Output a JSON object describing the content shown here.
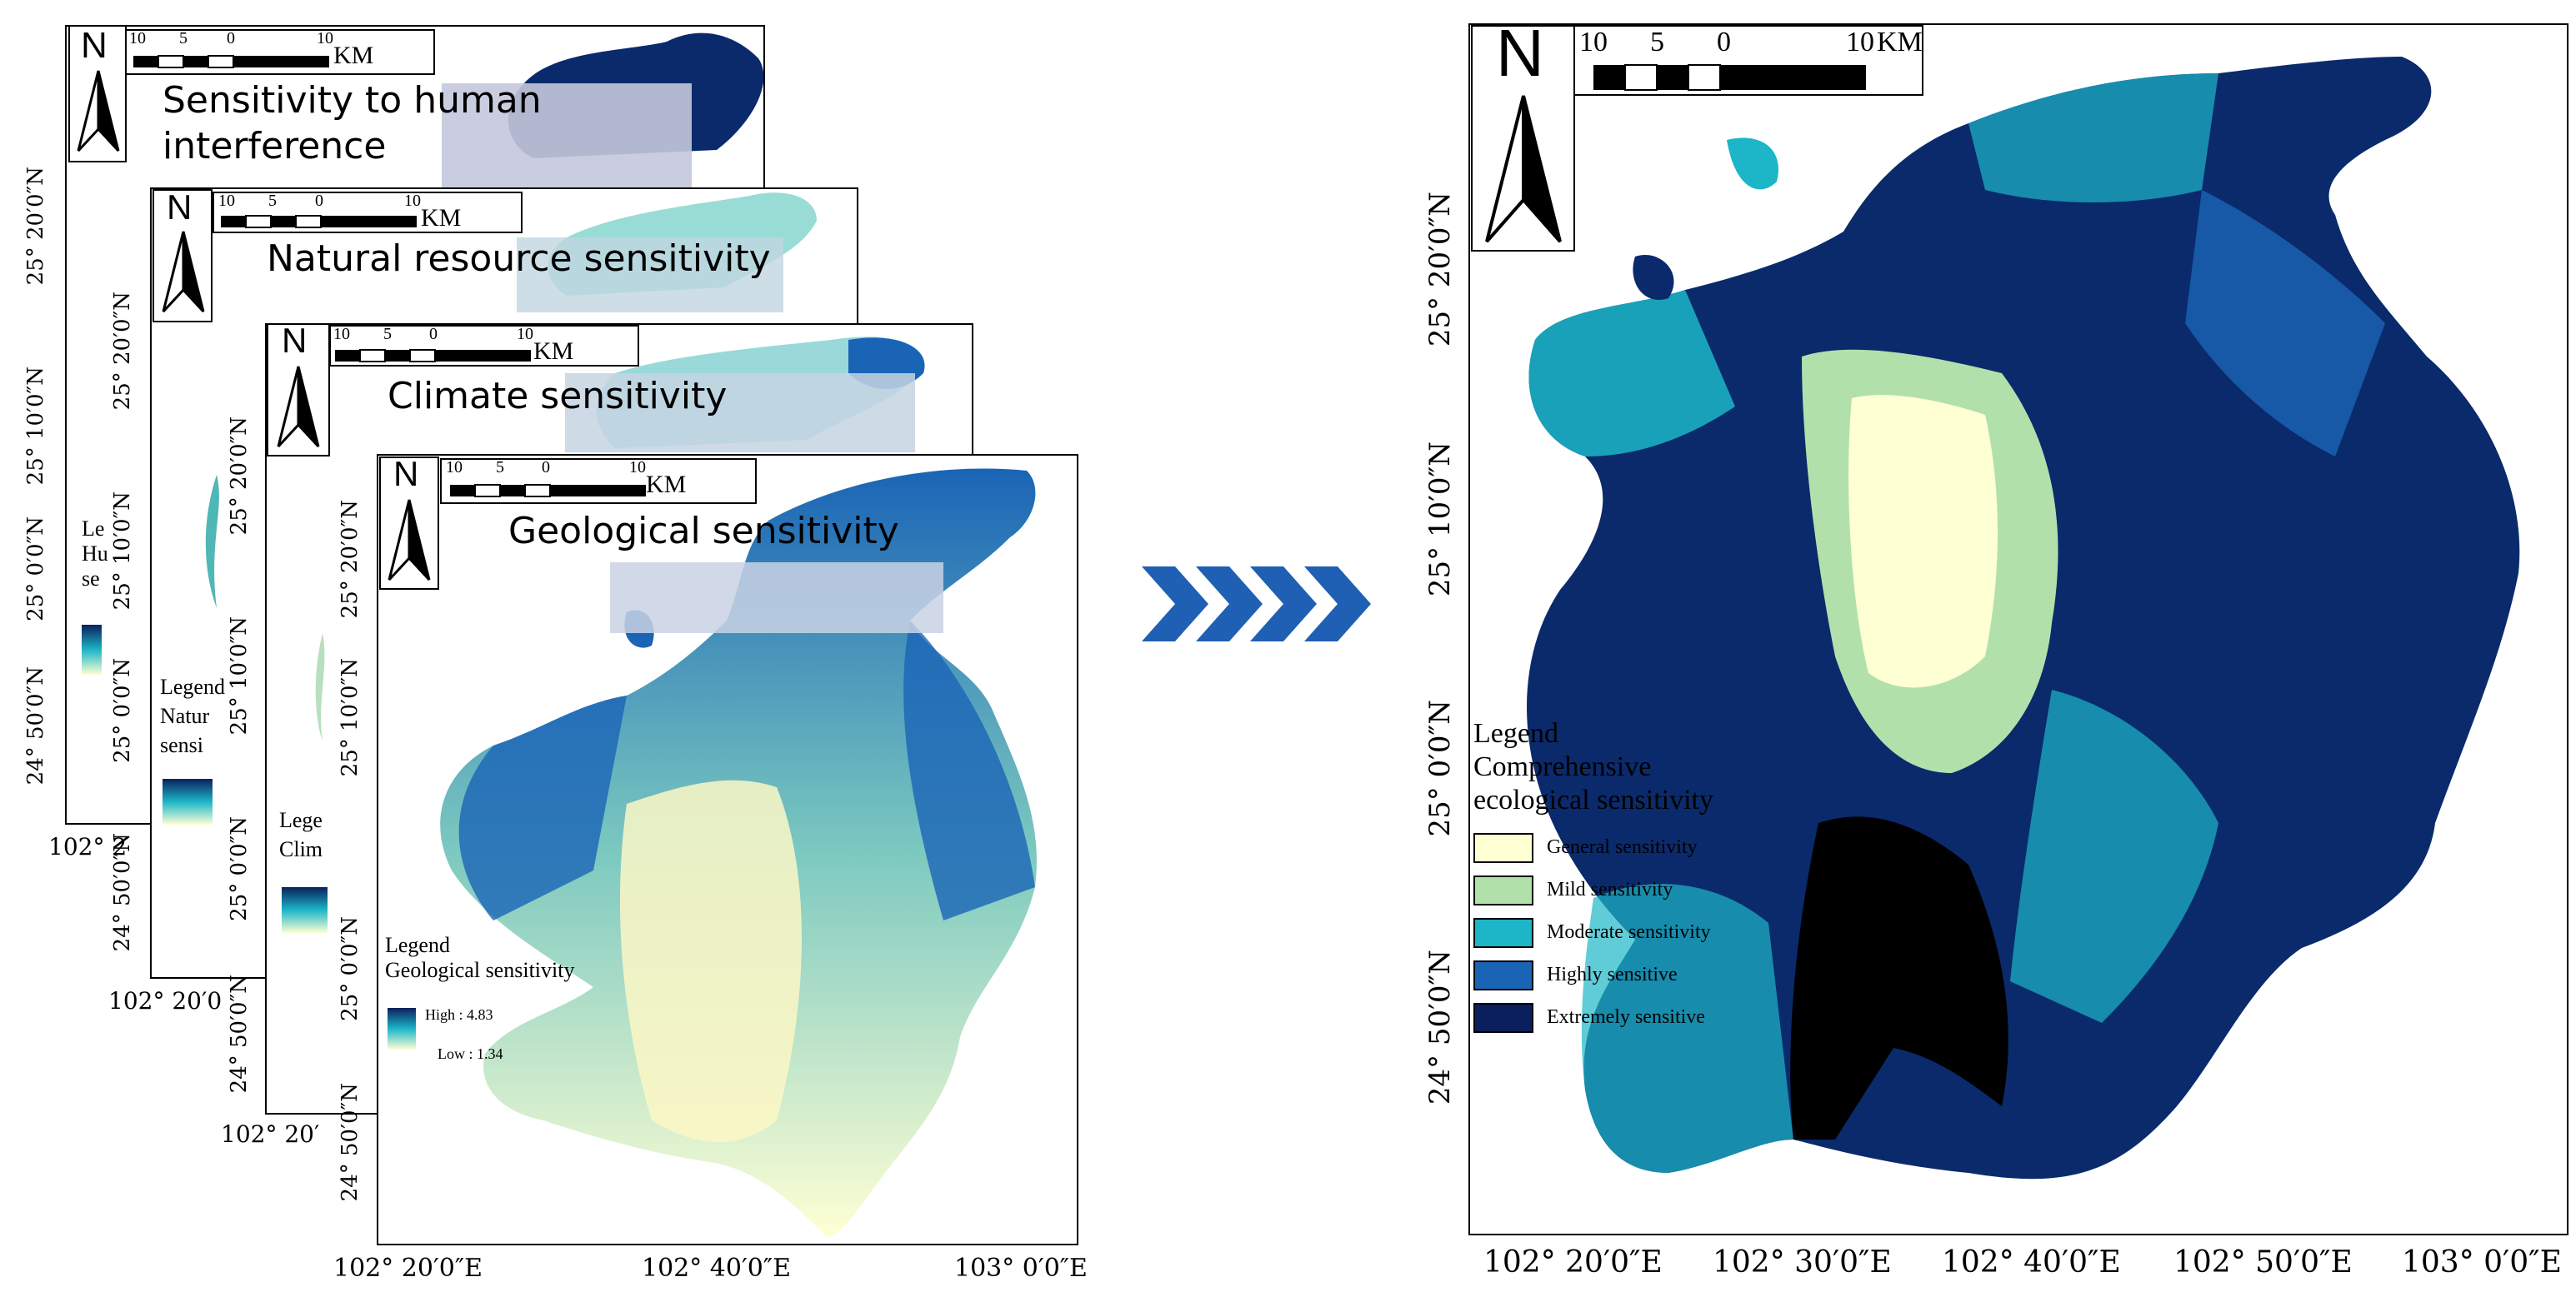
{
  "scale": {
    "ticks": [
      "10",
      "5",
      "0",
      "10"
    ],
    "unit": "KM"
  },
  "north_arrow": "N",
  "panels": [
    {
      "title": "Sensitivity to human interference",
      "title_lines": [
        "Sensitivity to human",
        "interference"
      ],
      "lat_labels": [
        "25° 20′0″N",
        "25° 10′0″N",
        "25° 0′0″N",
        "24° 50′0″N"
      ],
      "lon_labels": [
        "102° 2"
      ],
      "legend_fragments": [
        "Le",
        "Hu",
        "se"
      ]
    },
    {
      "title": "Natural resource sensitivity",
      "lat_labels": [
        "25° 20′0″N",
        "25° 10′0″N",
        "25° 0′0″N",
        "24° 50′0″N"
      ],
      "lon_labels": [
        "102° 20′0"
      ],
      "legend_fragments": [
        "Legend",
        "Natur",
        "sensi"
      ]
    },
    {
      "title": "Climate sensitivity",
      "lat_labels": [
        "25° 20′0″N",
        "25° 10′0″N",
        "25° 0′0″N",
        "24° 50′0″N"
      ],
      "lon_labels": [
        "102° 20′"
      ],
      "legend_fragments": [
        "Lege",
        "Clim"
      ]
    },
    {
      "title": "Geological sensitivity",
      "lat_labels": [
        "25° 20′0″N",
        "25° 10′0″N",
        "25° 0′0″N",
        "24° 50′0″N"
      ],
      "lon_labels": [
        "102° 20′0″E",
        "102° 40′0″E",
        "103° 0′0″E"
      ],
      "legend": {
        "title": "Legend",
        "subtitle": "Geological sensitivity",
        "high": "High : 4.83",
        "low": "Low : 1.34"
      }
    }
  ],
  "main_map": {
    "lat_labels": [
      "25° 20′0″N",
      "25° 10′0″N",
      "25° 0′0″N",
      "24° 50′0″N"
    ],
    "lon_labels": [
      "102° 20′0″E",
      "102° 30′0″E",
      "102° 40′0″E",
      "102° 50′0″E",
      "103° 0′0″E"
    ],
    "legend": {
      "title": "Legend",
      "subtitle_lines": [
        "Comprehensive",
        "ecological sensitivity"
      ],
      "classes": [
        {
          "label": "General sensitivity",
          "color": "#ffffd4"
        },
        {
          "label": "Mild sensitivity",
          "color": "#b2e0ab"
        },
        {
          "label": "Moderate sensitivity",
          "color": "#1cb6c8"
        },
        {
          "label": "Highly sensitive",
          "color": "#1a64b6"
        },
        {
          "label": "Extremely sensitive",
          "color": "#0a1f5c"
        }
      ]
    }
  },
  "colors": {
    "arrow": "#1f5fb4",
    "urban": "#000000",
    "ramp_high": "#0a1f5c",
    "ramp_low": "#ffffd4"
  }
}
